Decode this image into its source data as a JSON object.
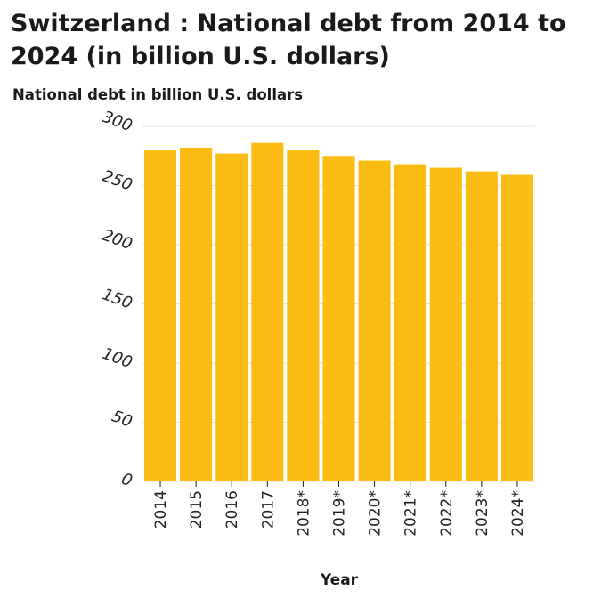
{
  "chart_data": {
    "type": "bar",
    "title": "Switzerland : National debt from 2014 to 2024 (in billion U.S. dollars)",
    "ylabel": "National debt in billion U.S. dollars",
    "xlabel": "Year",
    "categories": [
      "2014",
      "2015",
      "2016",
      "2017",
      "2018*",
      "2019*",
      "2020*",
      "2021*",
      "2022*",
      "2023*",
      "2024*"
    ],
    "values": [
      280,
      282,
      277,
      286,
      280,
      275,
      271,
      268,
      265,
      262,
      259
    ],
    "ylim": [
      0,
      300
    ],
    "yticks": [
      "0",
      "50",
      "100",
      "150",
      "200",
      "250",
      "300"
    ],
    "grid": true,
    "bar_color": "#FBBC13",
    "grid_color": "#e3e3e3"
  }
}
